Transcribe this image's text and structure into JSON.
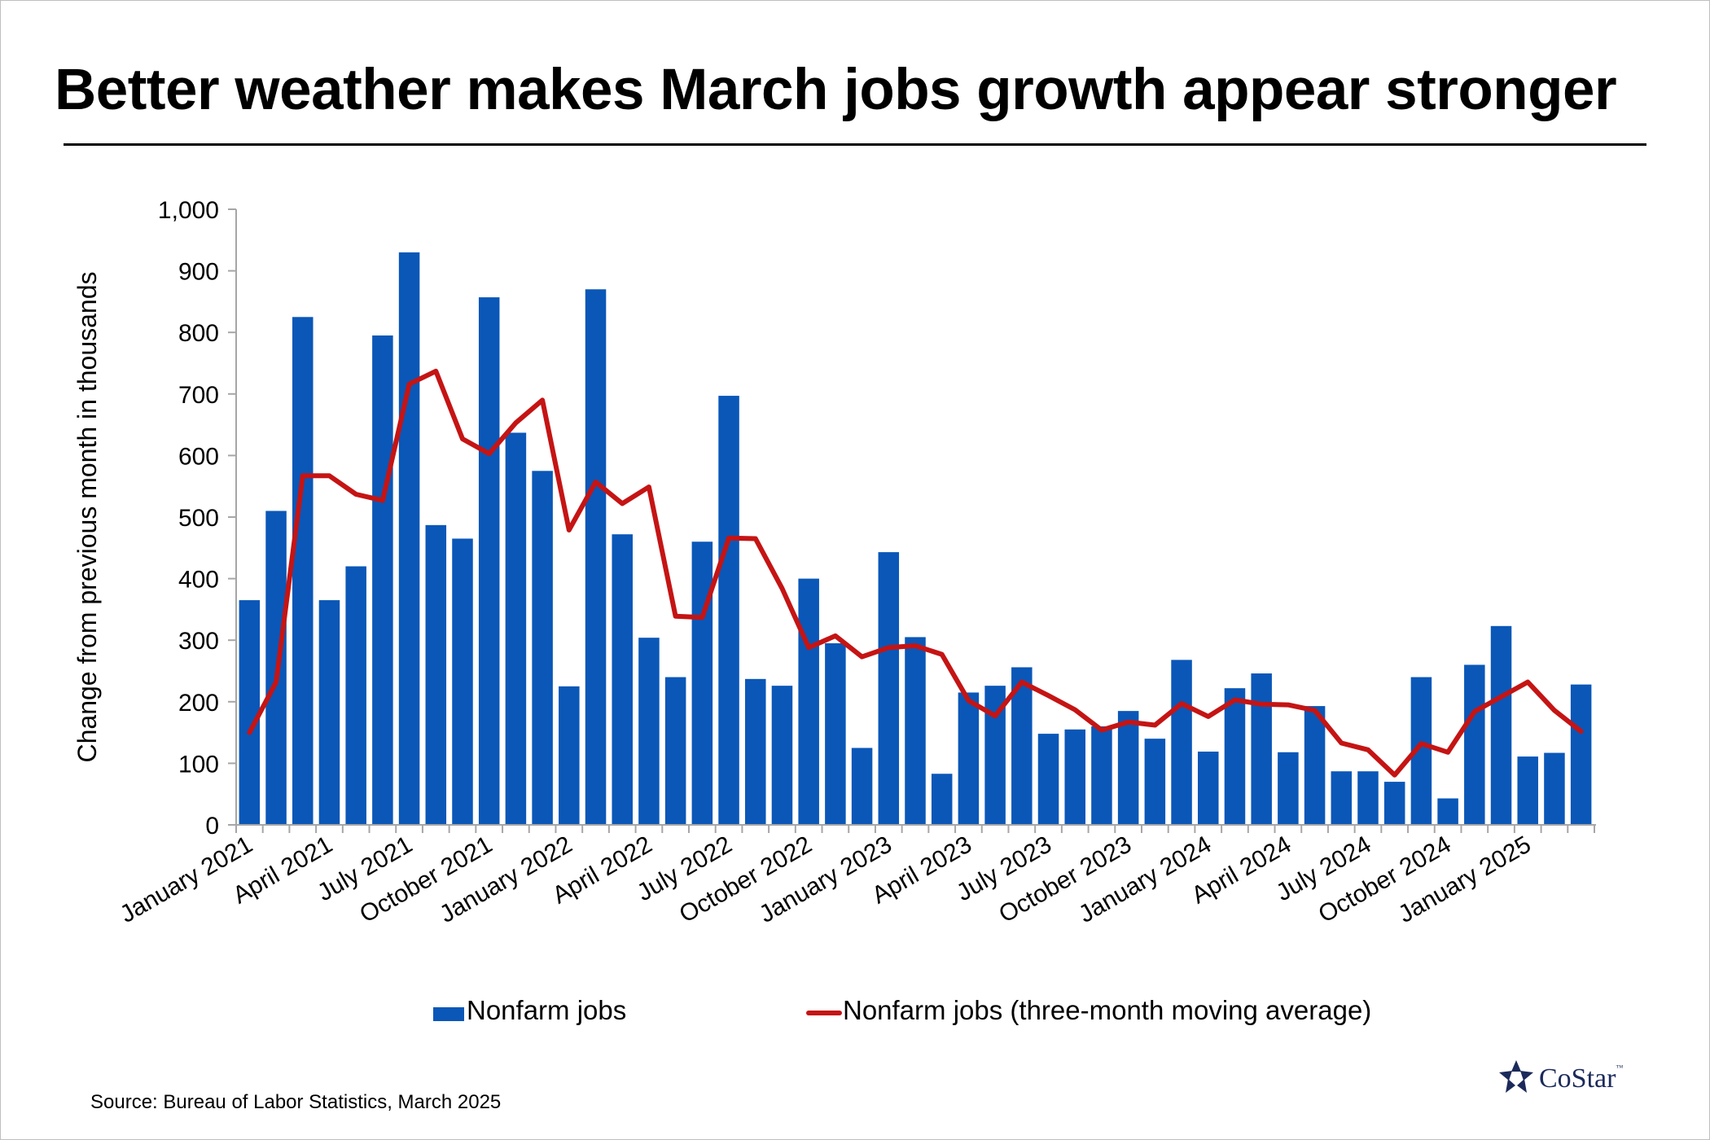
{
  "title": "Better weather makes March jobs growth appear stronger",
  "source": "Source: Bureau of Labor Statistics, March 2025",
  "logo_text": "CoStar",
  "logo_tm": "™",
  "colors": {
    "bar": "#0a57b8",
    "line": "#c51414",
    "axis": "#a6a6a6"
  },
  "chart_data": {
    "type": "bar",
    "title": "Better weather makes March jobs growth appear stronger",
    "ylabel": "Change from previous month in thousands",
    "xlabel": "",
    "ylim": [
      0,
      1000
    ],
    "yticks": [
      0,
      100,
      200,
      300,
      400,
      500,
      600,
      700,
      800,
      900,
      1000
    ],
    "ytick_labels": [
      "0",
      "100",
      "200",
      "300",
      "400",
      "500",
      "600",
      "700",
      "800",
      "900",
      "1,000"
    ],
    "tick_labels": [
      "January 2021",
      "April 2021",
      "July 2021",
      "October 2021",
      "January 2022",
      "April 2022",
      "July 2022",
      "October 2022",
      "January 2023",
      "April 2023",
      "July 2023",
      "October 2023",
      "January 2024",
      "April 2024",
      "July 2024",
      "October 2024",
      "January 2025"
    ],
    "tick_every": 3,
    "categories": [
      "Jan 2021",
      "Feb 2021",
      "Mar 2021",
      "Apr 2021",
      "May 2021",
      "Jun 2021",
      "Jul 2021",
      "Aug 2021",
      "Sep 2021",
      "Oct 2021",
      "Nov 2021",
      "Dec 2021",
      "Jan 2022",
      "Feb 2022",
      "Mar 2022",
      "Apr 2022",
      "May 2022",
      "Jun 2022",
      "Jul 2022",
      "Aug 2022",
      "Sep 2022",
      "Oct 2022",
      "Nov 2022",
      "Dec 2022",
      "Jan 2023",
      "Feb 2023",
      "Mar 2023",
      "Apr 2023",
      "May 2023",
      "Jun 2023",
      "Jul 2023",
      "Aug 2023",
      "Sep 2023",
      "Oct 2023",
      "Nov 2023",
      "Dec 2023",
      "Jan 2024",
      "Feb 2024",
      "Mar 2024",
      "Apr 2024",
      "May 2024",
      "Jun 2024",
      "Jul 2024",
      "Aug 2024",
      "Sep 2024",
      "Oct 2024",
      "Nov 2024",
      "Dec 2024",
      "Jan 2025",
      "Feb 2025",
      "Mar 2025"
    ],
    "series": [
      {
        "name": "Nonfarm jobs",
        "type": "bar",
        "values": [
          365,
          510,
          825,
          365,
          420,
          795,
          930,
          487,
          465,
          857,
          637,
          575,
          225,
          870,
          472,
          304,
          240,
          460,
          697,
          237,
          226,
          400,
          295,
          125,
          443,
          305,
          83,
          215,
          226,
          256,
          148,
          155,
          160,
          185,
          140,
          268,
          119,
          222,
          246,
          118,
          193,
          87,
          87,
          70,
          240,
          43,
          260,
          323,
          111,
          117,
          228
        ]
      },
      {
        "name": "Nonfarm jobs (three-month moving average)",
        "type": "line",
        "values": [
          150,
          232,
          567,
          567,
          537,
          527,
          716,
          737,
          627,
          603,
          653,
          690,
          479,
          557,
          522,
          549,
          339,
          337,
          466,
          465,
          384,
          288,
          307,
          273,
          288,
          291,
          277,
          202,
          177,
          232,
          210,
          187,
          154,
          167,
          162,
          197,
          176,
          203,
          196,
          195,
          186,
          133,
          122,
          81,
          132,
          118,
          184,
          208,
          232,
          186,
          152
        ]
      }
    ],
    "grid": false,
    "legend_position": "bottom-center"
  }
}
